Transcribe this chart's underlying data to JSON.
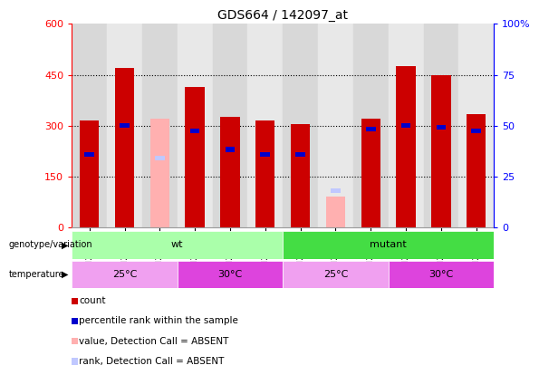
{
  "title": "GDS664 / 142097_at",
  "samples": [
    "GSM21864",
    "GSM21865",
    "GSM21866",
    "GSM21867",
    "GSM21868",
    "GSM21869",
    "GSM21860",
    "GSM21861",
    "GSM21862",
    "GSM21863",
    "GSM21870",
    "GSM21871"
  ],
  "count_values": [
    315,
    470,
    0,
    415,
    325,
    315,
    305,
    0,
    320,
    475,
    450,
    335
  ],
  "percentile_values": [
    215,
    300,
    205,
    285,
    230,
    215,
    215,
    0,
    290,
    300,
    295,
    285
  ],
  "absent_count": [
    0,
    0,
    320,
    0,
    0,
    0,
    0,
    90,
    0,
    0,
    0,
    0
  ],
  "absent_rank": [
    0,
    0,
    205,
    0,
    0,
    0,
    0,
    108,
    0,
    0,
    0,
    0
  ],
  "ylim_left": [
    0,
    600
  ],
  "ylim_right": [
    0,
    100
  ],
  "yticks_left": [
    0,
    150,
    300,
    450,
    600
  ],
  "yticks_right": [
    0,
    25,
    50,
    75,
    100
  ],
  "color_count": "#cc0000",
  "color_percentile": "#0000cc",
  "color_absent_count": "#ffb0b0",
  "color_absent_rank": "#c0c8ff",
  "bar_width": 0.55,
  "genotype_groups": [
    {
      "label": "wt",
      "start": 0,
      "end": 6,
      "color": "#aaffaa"
    },
    {
      "label": "mutant",
      "start": 6,
      "end": 12,
      "color": "#44dd44"
    }
  ],
  "temperature_groups": [
    {
      "label": "25°C",
      "start": 0,
      "end": 3,
      "color": "#f0a0f0"
    },
    {
      "label": "30°C",
      "start": 3,
      "end": 6,
      "color": "#dd44dd"
    },
    {
      "label": "25°C",
      "start": 6,
      "end": 9,
      "color": "#f0a0f0"
    },
    {
      "label": "30°C",
      "start": 9,
      "end": 12,
      "color": "#dd44dd"
    }
  ],
  "legend_items": [
    {
      "label": "count",
      "color": "#cc0000"
    },
    {
      "label": "percentile rank within the sample",
      "color": "#0000cc"
    },
    {
      "label": "value, Detection Call = ABSENT",
      "color": "#ffb0b0"
    },
    {
      "label": "rank, Detection Call = ABSENT",
      "color": "#c0c8ff"
    }
  ]
}
